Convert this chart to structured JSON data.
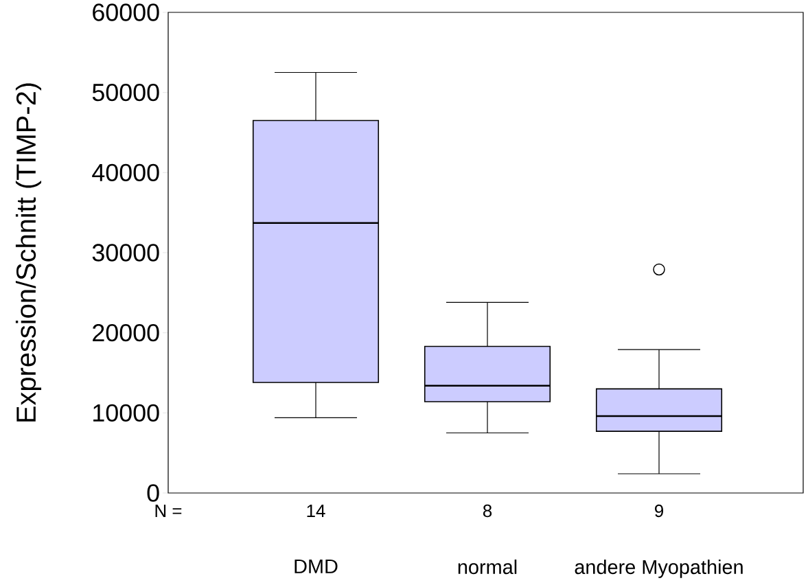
{
  "chart_data": {
    "type": "box",
    "ylabel": "Expression/Schnitt (TIMP-2)",
    "categories": [
      "DMD",
      "normal",
      "andere Myopathien"
    ],
    "color": "#ccccff",
    "boxes": [
      {
        "low": 9400,
        "q1": 13800,
        "median": 33700,
        "q3": 46500,
        "high": 52500
      },
      {
        "low": 7500,
        "q1": 11400,
        "median": 13400,
        "q3": 18300,
        "high": 23800
      },
      {
        "low": 2400,
        "q1": 7700,
        "median": 9600,
        "q3": 13000,
        "high": 17900,
        "outliers": [
          27900
        ]
      }
    ],
    "ylim": [
      0,
      60000
    ],
    "yticks": [
      0,
      10000,
      20000,
      30000,
      40000,
      50000,
      60000
    ],
    "annotations": [
      "N =",
      "14",
      "8",
      "9"
    ]
  }
}
